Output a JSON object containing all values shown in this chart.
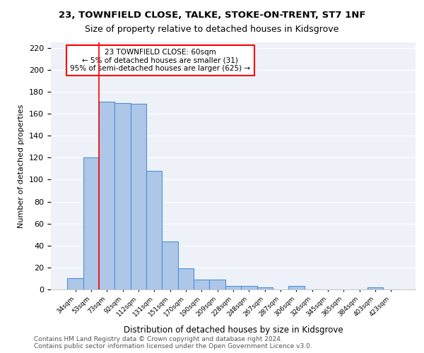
{
  "title1": "23, TOWNFIELD CLOSE, TALKE, STOKE-ON-TRENT, ST7 1NF",
  "title2": "Size of property relative to detached houses in Kidsgrove",
  "xlabel": "Distribution of detached houses by size in Kidsgrove",
  "ylabel": "Number of detached properties",
  "bin_labels": [
    "34sqm",
    "53sqm",
    "73sqm",
    "92sqm",
    "112sqm",
    "131sqm",
    "151sqm",
    "170sqm",
    "190sqm",
    "209sqm",
    "228sqm",
    "248sqm",
    "267sqm",
    "287sqm",
    "306sqm",
    "326sqm",
    "345sqm",
    "365sqm",
    "384sqm",
    "403sqm",
    "423sqm"
  ],
  "bar_values": [
    10,
    120,
    171,
    170,
    169,
    108,
    44,
    19,
    9,
    9,
    3,
    3,
    2,
    0,
    3,
    0,
    0,
    0,
    0,
    2,
    0
  ],
  "bar_color": "#aec7e8",
  "bar_edge_color": "#4a90d9",
  "red_line_x": 1.5,
  "annotation_line1": "23 TOWNFIELD CLOSE: 60sqm",
  "annotation_line2": "← 5% of detached houses are smaller (31)",
  "annotation_line3": "95% of semi-detached houses are larger (625) →",
  "annotation_box_color": "white",
  "annotation_box_edge_color": "red",
  "footer_text": "Contains HM Land Registry data © Crown copyright and database right 2024.\nContains public sector information licensed under the Open Government Licence v3.0.",
  "ylim": [
    0,
    225
  ],
  "yticks": [
    0,
    20,
    40,
    60,
    80,
    100,
    120,
    140,
    160,
    180,
    200,
    220
  ],
  "bg_color": "#eef2f8"
}
